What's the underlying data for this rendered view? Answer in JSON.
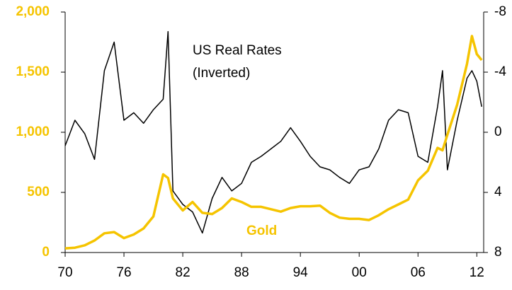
{
  "chart_data": {
    "type": "line",
    "x": [
      1970,
      1971,
      1972,
      1973,
      1974,
      1975,
      1976,
      1977,
      1978,
      1979,
      1980,
      1980.5,
      1981,
      1982,
      1983,
      1984,
      1985,
      1986,
      1987,
      1988,
      1989,
      1990,
      1991,
      1992,
      1993,
      1994,
      1995,
      1996,
      1997,
      1998,
      1999,
      2000,
      2001,
      2002,
      2003,
      2004,
      2005,
      2006,
      2007,
      2008,
      2008.5,
      2009,
      2010,
      2011,
      2011.5,
      2012,
      2012.5
    ],
    "series": [
      {
        "name": "Gold",
        "color": "#f5c400",
        "axis": "y",
        "values": [
          35,
          40,
          60,
          100,
          160,
          170,
          120,
          150,
          200,
          300,
          650,
          620,
          450,
          350,
          420,
          330,
          320,
          370,
          450,
          420,
          380,
          380,
          360,
          340,
          370,
          385,
          385,
          390,
          330,
          290,
          280,
          280,
          270,
          310,
          360,
          400,
          440,
          600,
          680,
          870,
          850,
          980,
          1230,
          1570,
          1800,
          1650,
          1600
        ]
      },
      {
        "name": "US Real Rates",
        "color": "#000000",
        "axis": "y2",
        "values": [
          0.9,
          -0.8,
          0.1,
          1.8,
          -4.1,
          -6,
          -0.8,
          -1.3,
          -0.6,
          -1.5,
          -2.2,
          -6.7,
          3.9,
          4.8,
          5.3,
          6.7,
          4.4,
          3,
          3.9,
          3.4,
          2,
          1.6,
          1.1,
          0.6,
          -0.3,
          0.6,
          1.6,
          2.3,
          2.5,
          3,
          3.4,
          2.5,
          2.3,
          1.1,
          -0.8,
          -1.5,
          -1.3,
          1.6,
          2,
          -1.7,
          -4.1,
          2.5,
          -0.8,
          -3.6,
          -4.1,
          -3.4,
          -1.7
        ]
      }
    ],
    "annotation": "(Inverted)",
    "xlim": [
      1970,
      2012.7
    ],
    "xticks": [
      {
        "value": 1970,
        "label": "70"
      },
      {
        "value": 1976,
        "label": "76"
      },
      {
        "value": 1982,
        "label": "82"
      },
      {
        "value": 1988,
        "label": "88"
      },
      {
        "value": 1994,
        "label": "94"
      },
      {
        "value": 2000,
        "label": "00"
      },
      {
        "value": 2006,
        "label": "06"
      },
      {
        "value": 2012,
        "label": "12"
      }
    ],
    "ylim": [
      0,
      2000
    ],
    "yticks": [
      0,
      500,
      {
        "value": 1000,
        "label": "1,000"
      },
      {
        "value": 1500,
        "label": "1,500"
      },
      {
        "value": 2000,
        "label": "2,000"
      }
    ],
    "y2lim": [
      8,
      -8
    ],
    "y2ticks": [
      -8,
      -4,
      0,
      4,
      8
    ],
    "grid": false
  }
}
